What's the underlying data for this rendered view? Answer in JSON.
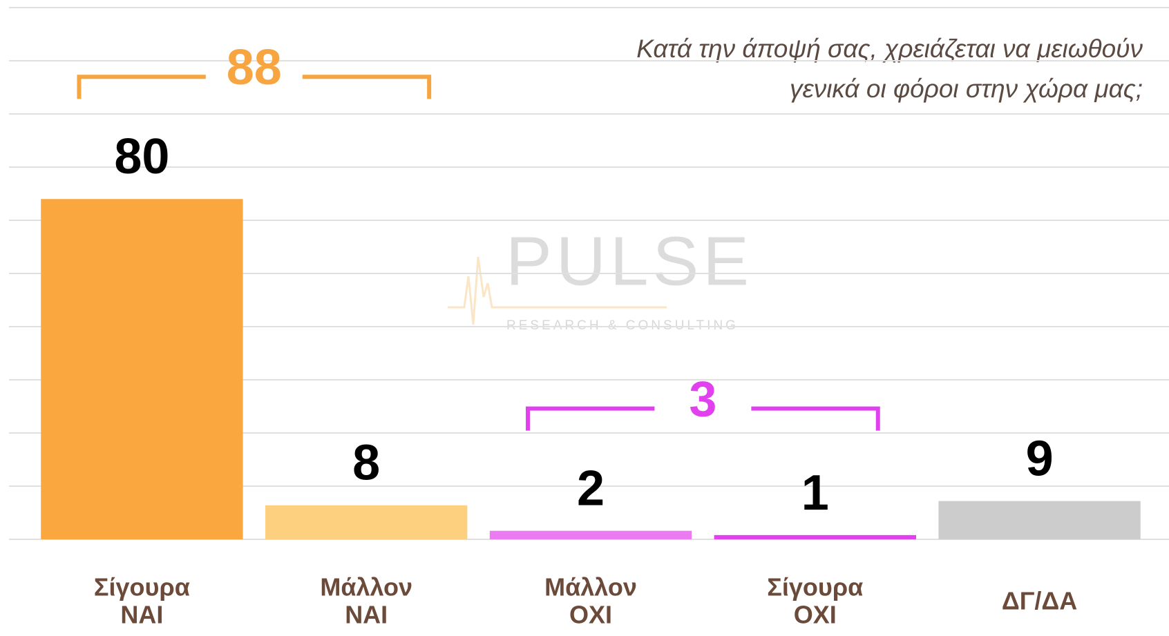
{
  "chart_data": {
    "type": "bar",
    "title_lines": [
      "Κατά την άποψή σας, χρειάζεται να μειωθούν",
      "γενικά οι φόροι στην χώρα μας;"
    ],
    "categories": [
      [
        "Σίγουρα",
        "ΝΑΙ"
      ],
      [
        "Μάλλον",
        "ΝΑΙ"
      ],
      [
        "Μάλλον",
        "ΟΧΙ"
      ],
      [
        "Σίγουρα",
        "ΟΧΙ"
      ],
      [
        "ΔΓ/ΔΑ"
      ]
    ],
    "values": [
      80,
      8,
      2,
      1,
      9
    ],
    "colors": [
      "#f9a73e",
      "#fdd080",
      "#ec7af0",
      "#e040ee",
      "#cccccc"
    ],
    "groups": [
      {
        "value": 88,
        "from": 0,
        "to": 1,
        "color": "#f7a541"
      },
      {
        "value": 3,
        "from": 2,
        "to": 3,
        "color": "#e040ee"
      }
    ],
    "ylim": [
      0,
      125
    ],
    "yticks": [
      0,
      12.5,
      25,
      37.5,
      50,
      62.5,
      75,
      87.5,
      100,
      112.5,
      125
    ],
    "grid": true,
    "show_tick_labels": false,
    "watermark": [
      "PULSE",
      "RESEARCH & CONSULTING"
    ]
  }
}
